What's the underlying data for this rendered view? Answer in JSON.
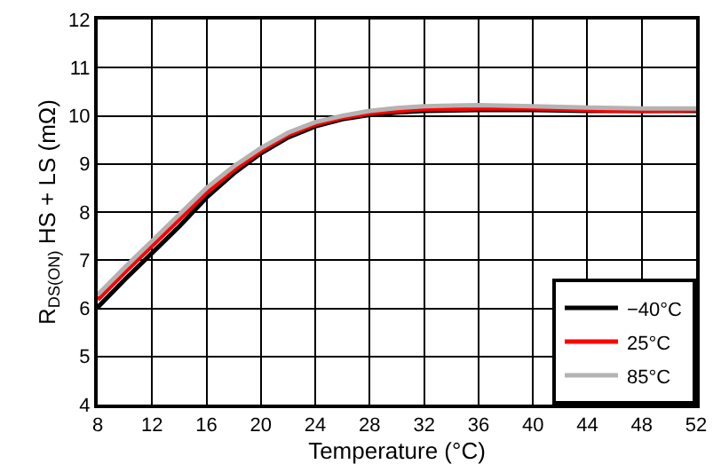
{
  "chart_data": {
    "type": "line",
    "xlabel": "Temperature (°C)",
    "ylabel": "R$_{DS(ON)}$ HS + LS (mΩ)",
    "x": [
      8,
      10,
      12,
      14,
      16,
      18,
      20,
      22,
      24,
      26,
      28,
      30,
      32,
      36,
      40,
      44,
      48,
      52
    ],
    "series": [
      {
        "name": "−40°C",
        "color": "#000000",
        "values": [
          6.02,
          6.6,
          7.15,
          7.7,
          8.3,
          8.8,
          9.22,
          9.55,
          9.78,
          9.93,
          10.02,
          10.07,
          10.1,
          10.12,
          10.12,
          10.1,
          10.1,
          10.1
        ]
      },
      {
        "name": "25°C",
        "color": "#ff0000",
        "values": [
          6.18,
          6.75,
          7.3,
          7.85,
          8.4,
          8.87,
          9.27,
          9.6,
          9.82,
          9.96,
          10.05,
          10.1,
          10.14,
          10.15,
          10.15,
          10.12,
          10.1,
          10.12
        ]
      },
      {
        "name": "85°C",
        "color": "#b3b3b3",
        "values": [
          6.28,
          6.85,
          7.4,
          7.95,
          8.5,
          8.95,
          9.33,
          9.65,
          9.87,
          10.0,
          10.1,
          10.16,
          10.2,
          10.22,
          10.2,
          10.17,
          10.15,
          10.15
        ]
      }
    ],
    "xlim": [
      8,
      52
    ],
    "xticks": [
      8,
      12,
      16,
      20,
      24,
      28,
      32,
      36,
      40,
      44,
      48,
      52
    ],
    "ylim": [
      4,
      12
    ],
    "yticks": [
      4,
      5,
      6,
      7,
      8,
      9,
      10,
      11,
      12
    ],
    "grid": true,
    "legend": "bottom right",
    "marker": "none",
    "line_style": "solid"
  }
}
